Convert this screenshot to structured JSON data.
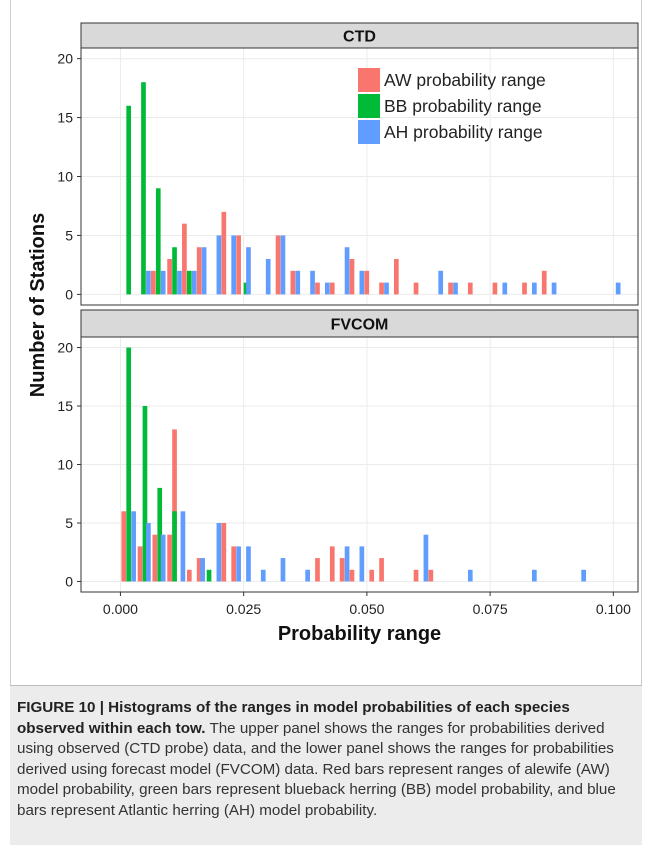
{
  "chart_data": {
    "type": "bar",
    "xlabel": "Probability range",
    "ylabel": "Number of Stations",
    "xlim": [
      -0.008,
      0.105
    ],
    "x_ticks": [
      "0.000",
      "0.025",
      "0.050",
      "0.075",
      "0.100"
    ],
    "x_tick_values": [
      0,
      0.025,
      0.05,
      0.075,
      0.1
    ],
    "y_ticks": [
      "0",
      "5",
      "10",
      "15",
      "20"
    ],
    "y_tick_values": [
      0,
      5,
      10,
      15,
      20
    ],
    "ylim": [
      -0.9,
      20.9
    ],
    "grid": true,
    "legend_position": "top-right",
    "series": [
      {
        "name": "AW probability range",
        "color": "#f8766d"
      },
      {
        "name": "BB probability range",
        "color": "#00ba38"
      },
      {
        "name": "AH probability range",
        "color": "#619cff"
      }
    ],
    "panels": [
      {
        "strip": "CTD",
        "series_values": {
          "BB probability range": [
            [
              0.0012,
              16
            ],
            [
              0.0042,
              18
            ],
            [
              0.0072,
              9
            ],
            [
              0.0105,
              4
            ],
            [
              0.0135,
              2
            ],
            [
              0.025,
              1
            ]
          ],
          "AH probability range": [
            [
              0.0052,
              2
            ],
            [
              0.0082,
              2
            ],
            [
              0.0115,
              2
            ],
            [
              0.0145,
              2
            ],
            [
              0.0165,
              4
            ],
            [
              0.0195,
              5
            ],
            [
              0.0225,
              5
            ],
            [
              0.0255,
              4
            ],
            [
              0.0295,
              3
            ],
            [
              0.0325,
              5
            ],
            [
              0.0355,
              2
            ],
            [
              0.0385,
              2
            ],
            [
              0.0415,
              1
            ],
            [
              0.0455,
              4
            ],
            [
              0.0485,
              2
            ],
            [
              0.0535,
              1
            ],
            [
              0.0645,
              2
            ],
            [
              0.0675,
              1
            ],
            [
              0.0775,
              1
            ],
            [
              0.0835,
              1
            ],
            [
              0.0875,
              1
            ],
            [
              0.1005,
              1
            ]
          ],
          "AW probability range": [
            [
              0.0062,
              2
            ],
            [
              0.0095,
              3
            ],
            [
              0.0125,
              6
            ],
            [
              0.0155,
              4
            ],
            [
              0.0205,
              7
            ],
            [
              0.0235,
              5
            ],
            [
              0.0315,
              5
            ],
            [
              0.0345,
              2
            ],
            [
              0.0395,
              1
            ],
            [
              0.0425,
              1
            ],
            [
              0.0465,
              3
            ],
            [
              0.0495,
              2
            ],
            [
              0.0525,
              1
            ],
            [
              0.0555,
              3
            ],
            [
              0.0595,
              1
            ],
            [
              0.0665,
              1
            ],
            [
              0.0705,
              1
            ],
            [
              0.0755,
              1
            ],
            [
              0.0815,
              1
            ],
            [
              0.0855,
              2
            ]
          ]
        }
      },
      {
        "strip": "FVCOM",
        "series_values": {
          "AW probability range": [
            [
              0.0002,
              6
            ],
            [
              0.0035,
              3
            ],
            [
              0.0065,
              4
            ],
            [
              0.0095,
              4
            ],
            [
              0.0105,
              13
            ],
            [
              0.0135,
              1
            ],
            [
              0.0155,
              2
            ],
            [
              0.0205,
              5
            ],
            [
              0.0225,
              3
            ],
            [
              0.0395,
              2
            ],
            [
              0.0425,
              3
            ],
            [
              0.0445,
              2
            ],
            [
              0.0465,
              1
            ],
            [
              0.0505,
              1
            ],
            [
              0.0525,
              2
            ],
            [
              0.0595,
              1
            ],
            [
              0.0625,
              1
            ]
          ],
          "BB probability range": [
            [
              0.0012,
              20
            ],
            [
              0.0045,
              15
            ],
            [
              0.0075,
              8
            ],
            [
              0.0105,
              6
            ],
            [
              0.0175,
              1
            ]
          ],
          "AH probability range": [
            [
              0.0022,
              6
            ],
            [
              0.0052,
              5
            ],
            [
              0.0082,
              4
            ],
            [
              0.0122,
              6
            ],
            [
              0.0162,
              2
            ],
            [
              0.0195,
              5
            ],
            [
              0.0235,
              3
            ],
            [
              0.0255,
              3
            ],
            [
              0.0285,
              1
            ],
            [
              0.0325,
              2
            ],
            [
              0.0375,
              1
            ],
            [
              0.0455,
              3
            ],
            [
              0.0485,
              3
            ],
            [
              0.0615,
              4
            ],
            [
              0.0705,
              1
            ],
            [
              0.0835,
              1
            ],
            [
              0.0935,
              1
            ]
          ]
        }
      }
    ]
  },
  "caption": {
    "lead": "FIGURE 10 | Histograms of the ranges in model probabilities of each species observed within each tow.",
    "body": "The upper panel shows the ranges for probabilities derived using observed (CTD probe) data, and the lower panel shows the ranges for probabilities derived using forecast model (FVCOM) data. Red bars represent ranges of alewife (AW) model probability, green bars represent blueback herring (BB) model probability, and blue bars represent Atlantic herring (AH) model probability."
  }
}
